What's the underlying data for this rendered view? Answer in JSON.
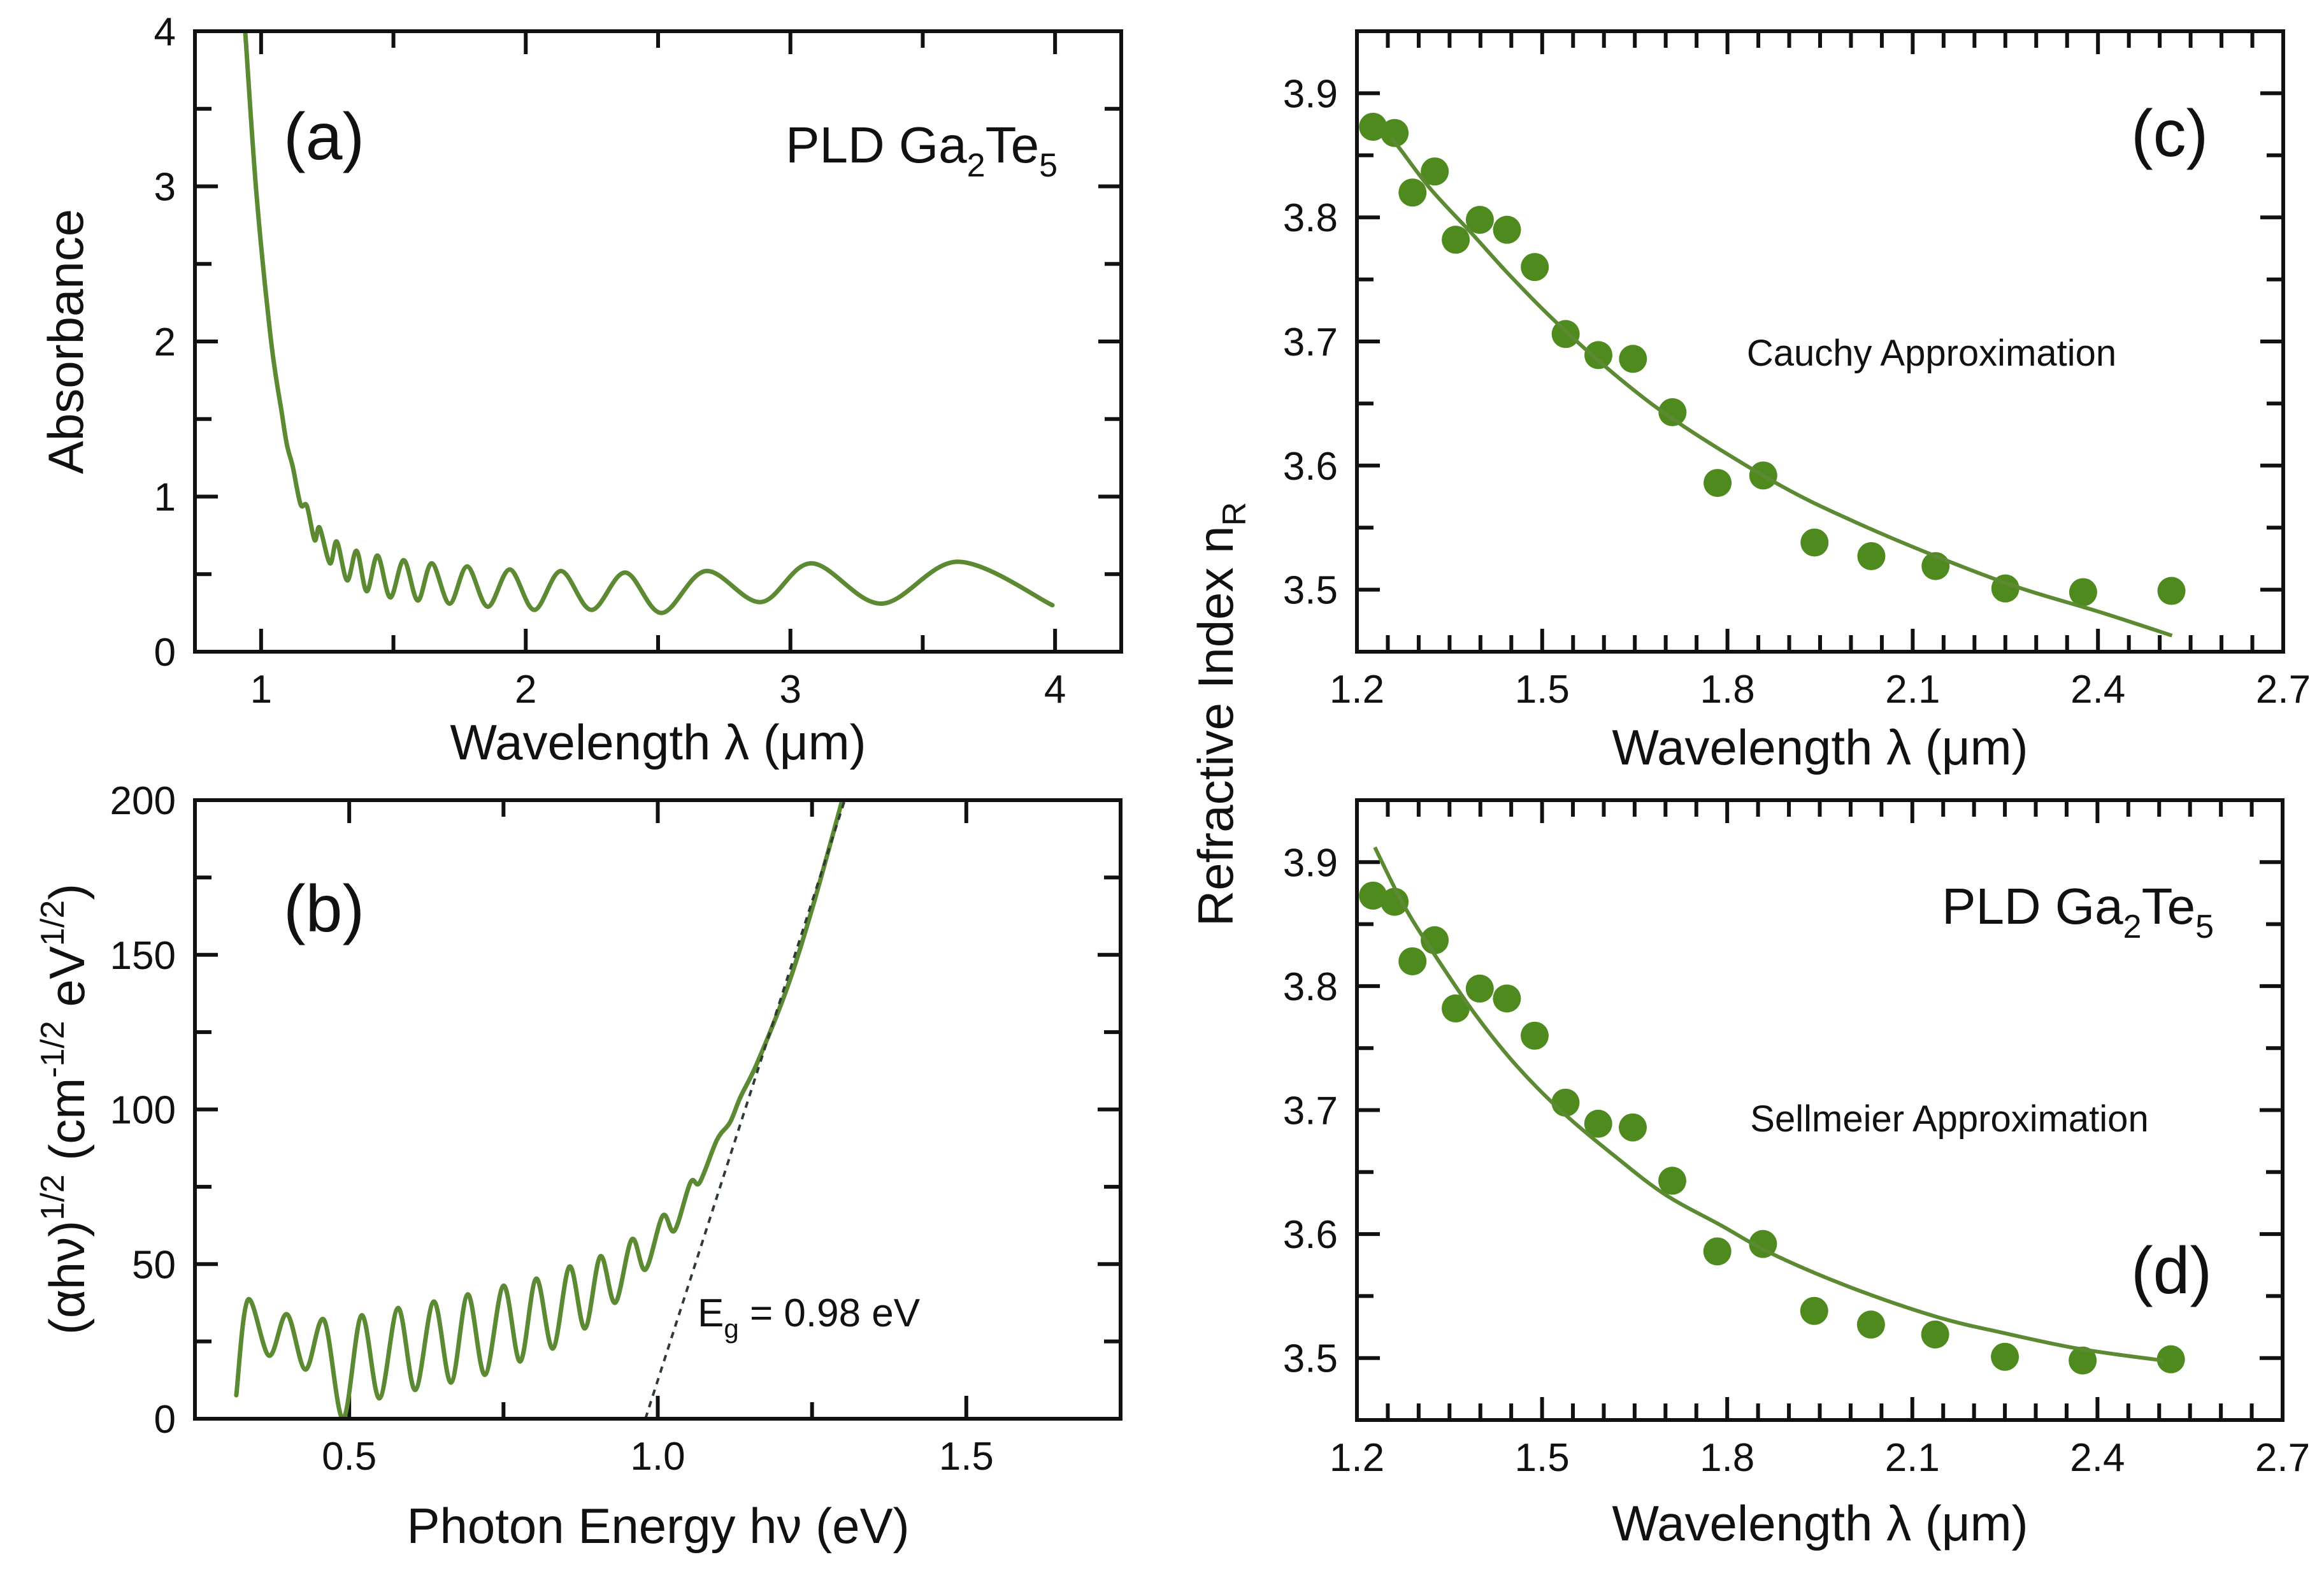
{
  "figure": {
    "colors": {
      "curve": "#5b8a33",
      "points": "#4e8a1e",
      "dashed": "#2f3b35",
      "axes": "#111111"
    }
  },
  "chart_data": [
    {
      "id": "a",
      "type": "line",
      "panel_label": "(a)",
      "annotation": {
        "main": "PLD Ga",
        "sub1": "2",
        "mid": "Te",
        "sub2": "5"
      },
      "xlabel": "Wavelength λ (μm)",
      "ylabel": "Absorbance",
      "xlim": [
        0.75,
        4.25
      ],
      "ylim": [
        0,
        4
      ],
      "xticks": [
        1,
        2,
        3,
        4
      ],
      "xtick_labels": [
        "1",
        "2",
        "3",
        "4"
      ],
      "xminor": [
        1.5,
        2.5,
        3.5
      ],
      "yticks": [
        0,
        1,
        2,
        3,
        4
      ],
      "ytick_labels": [
        "0",
        "1",
        "2",
        "3",
        "4"
      ],
      "yminor": [
        0.5,
        1.5,
        2.5,
        3.5
      ],
      "series": [
        {
          "name": "Absorbance",
          "x": [
            0.94,
            0.983,
            1.038,
            1.079,
            1.098,
            1.12,
            1.149,
            1.173,
            1.202,
            1.221,
            1.26,
            1.286,
            1.325,
            1.361,
            1.399,
            1.44,
            1.488,
            1.539,
            1.592,
            1.645,
            1.712,
            1.779,
            1.856,
            1.94,
            2.032,
            2.133,
            2.248,
            2.376,
            2.513,
            2.68,
            2.888,
            3.08,
            3.343,
            3.634,
            3.99
          ],
          "y": [
            4.0,
            2.94,
            2.0,
            1.53,
            1.33,
            1.19,
            0.95,
            0.94,
            0.72,
            0.8,
            0.57,
            0.71,
            0.46,
            0.65,
            0.39,
            0.62,
            0.35,
            0.59,
            0.33,
            0.57,
            0.31,
            0.55,
            0.29,
            0.53,
            0.27,
            0.52,
            0.27,
            0.51,
            0.25,
            0.52,
            0.32,
            0.57,
            0.31,
            0.58,
            0.3
          ]
        }
      ]
    },
    {
      "id": "b",
      "type": "line",
      "panel_label": "(b)",
      "annotation": {
        "main": "E",
        "sub": "g",
        "rest": " = 0.98 eV"
      },
      "xlabel": "Photon Energy hν (eV)",
      "ylabel": {
        "a": "(αhν)",
        "sup1": "1/2",
        "b": " (cm",
        "sup2": "-1/2",
        "c": " eV",
        "sup3": "1/2",
        "d": ")"
      },
      "xlim": [
        0.25,
        1.75
      ],
      "ylim": [
        0,
        200
      ],
      "xticks": [
        0.5,
        1.0,
        1.5
      ],
      "xtick_labels": [
        "0.5",
        "1.0",
        "1.5"
      ],
      "xminor": [
        0.75,
        1.25
      ],
      "yticks": [
        0,
        50,
        100,
        150,
        200
      ],
      "ytick_labels": [
        "0",
        "50",
        "100",
        "150",
        "200"
      ],
      "yminor": [
        25,
        75,
        125,
        175
      ],
      "series": [
        {
          "name": "(αhν)^1/2",
          "x": [
            0.317,
            0.336,
            0.37,
            0.399,
            0.429,
            0.459,
            0.49,
            0.52,
            0.549,
            0.579,
            0.607,
            0.637,
            0.665,
            0.692,
            0.72,
            0.75,
            0.777,
            0.803,
            0.83,
            0.857,
            0.882,
            0.907,
            0.931,
            0.958,
            0.98,
            1.008,
            1.027,
            1.053,
            1.068,
            1.096,
            1.117,
            1.134,
            1.161,
            1.209,
            1.25,
            1.299
          ],
          "y": [
            7.6,
            38.5,
            20.4,
            33.8,
            15.9,
            32.0,
            0.0,
            33.4,
            6.6,
            35.8,
            9.3,
            37.9,
            11.7,
            40.2,
            14.2,
            43.0,
            18.5,
            45.3,
            22.7,
            49.2,
            29.2,
            52.5,
            37.5,
            58.0,
            48.2,
            65.6,
            60.8,
            76.4,
            76.4,
            90.2,
            95.8,
            104.0,
            115.0,
            139.0,
            164.8,
            200.0
          ]
        },
        {
          "name": "Linear extrapolation (Eg)",
          "style": "dashed",
          "x": [
            0.98,
            1.303
          ],
          "y": [
            0,
            200
          ]
        }
      ]
    },
    {
      "id": "c",
      "type": "scatter",
      "panel_label": "(c)",
      "annotation": "Cauchy Approximation",
      "xlabel": "Wavelength λ (μm)",
      "ylabel": {
        "main": "Refractive Index n",
        "sub": "R"
      },
      "xlim": [
        1.2,
        2.7
      ],
      "ylim": [
        3.45,
        3.95
      ],
      "xticks": [
        1.2,
        1.5,
        1.8,
        2.1,
        2.4,
        2.7
      ],
      "xtick_labels": [
        "1.2",
        "1.5",
        "1.8",
        "2.1",
        "2.4",
        "2.7"
      ],
      "xminor": [
        1.25,
        1.3,
        1.35,
        1.4,
        1.45,
        1.55,
        1.6,
        1.65,
        1.7,
        1.75,
        1.85,
        1.9,
        1.95,
        2.0,
        2.05,
        2.15,
        2.2,
        2.25,
        2.3,
        2.35,
        2.45,
        2.5,
        2.55,
        2.6,
        2.65
      ],
      "yticks": [
        3.5,
        3.6,
        3.7,
        3.8,
        3.9
      ],
      "ytick_labels": [
        "3.5",
        "3.6",
        "3.7",
        "3.8",
        "3.9"
      ],
      "yminor": [
        3.55,
        3.65,
        3.75,
        3.85
      ],
      "series": [
        {
          "name": "Measured n_R",
          "style": "markers",
          "x": [
            1.226,
            1.261,
            1.29,
            1.326,
            1.36,
            1.399,
            1.443,
            1.488,
            1.538,
            1.591,
            1.647,
            1.711,
            1.784,
            1.858,
            1.941,
            2.033,
            2.137,
            2.25,
            2.376,
            2.519
          ],
          "y": [
            3.873,
            3.868,
            3.82,
            3.837,
            3.782,
            3.798,
            3.79,
            3.76,
            3.706,
            3.689,
            3.686,
            3.643,
            3.586,
            3.592,
            3.538,
            3.527,
            3.519,
            3.501,
            3.498,
            3.499
          ]
        },
        {
          "name": "Cauchy fit",
          "style": "line",
          "x": [
            1.255,
            1.27,
            1.319,
            1.386,
            1.45,
            1.53,
            1.633,
            1.728,
            1.882,
            2.0,
            2.137,
            2.27,
            2.403,
            2.52
          ],
          "y": [
            3.864,
            3.855,
            3.823,
            3.787,
            3.752,
            3.712,
            3.667,
            3.632,
            3.585,
            3.556,
            3.527,
            3.502,
            3.482,
            3.463
          ]
        }
      ]
    },
    {
      "id": "d",
      "type": "scatter",
      "panel_label": "(d)",
      "annotation": "Sellmeier Approximation",
      "annotation2": {
        "main": "PLD Ga",
        "sub1": "2",
        "mid": "Te",
        "sub2": "5"
      },
      "xlabel": "Wavelength λ (μm)",
      "xlim": [
        1.2,
        2.7
      ],
      "ylim": [
        3.45,
        3.95
      ],
      "xticks": [
        1.2,
        1.5,
        1.8,
        2.1,
        2.4,
        2.7
      ],
      "xtick_labels": [
        "1.2",
        "1.5",
        "1.8",
        "2.1",
        "2.4",
        "2.7"
      ],
      "xminor": [
        1.25,
        1.3,
        1.35,
        1.4,
        1.45,
        1.55,
        1.6,
        1.65,
        1.7,
        1.75,
        1.85,
        1.9,
        1.95,
        2.0,
        2.05,
        2.15,
        2.2,
        2.25,
        2.3,
        2.35,
        2.45,
        2.5,
        2.55,
        2.6,
        2.65
      ],
      "yticks": [
        3.5,
        3.6,
        3.7,
        3.8,
        3.9
      ],
      "ytick_labels": [
        "3.5",
        "3.6",
        "3.7",
        "3.8",
        "3.9"
      ],
      "yminor": [
        3.55,
        3.65,
        3.75,
        3.85
      ],
      "series": [
        {
          "name": "Measured n_R",
          "style": "markers",
          "x": [
            1.226,
            1.261,
            1.29,
            1.326,
            1.36,
            1.399,
            1.443,
            1.488,
            1.538,
            1.591,
            1.647,
            1.711,
            1.784,
            1.858,
            1.941,
            2.033,
            2.137,
            2.25,
            2.376,
            2.519
          ],
          "y": [
            3.873,
            3.868,
            3.82,
            3.837,
            3.782,
            3.798,
            3.79,
            3.76,
            3.706,
            3.689,
            3.686,
            3.643,
            3.586,
            3.592,
            3.538,
            3.527,
            3.519,
            3.501,
            3.498,
            3.499
          ]
        },
        {
          "name": "Sellmeier fit",
          "style": "line",
          "x": [
            1.229,
            1.275,
            1.325,
            1.392,
            1.46,
            1.536,
            1.62,
            1.699,
            1.79,
            1.873,
            2.0,
            2.141,
            2.25,
            2.353,
            2.43,
            2.507
          ],
          "y": [
            3.912,
            3.866,
            3.826,
            3.777,
            3.735,
            3.697,
            3.662,
            3.632,
            3.607,
            3.584,
            3.557,
            3.533,
            3.52,
            3.509,
            3.503,
            3.498
          ]
        }
      ]
    }
  ]
}
